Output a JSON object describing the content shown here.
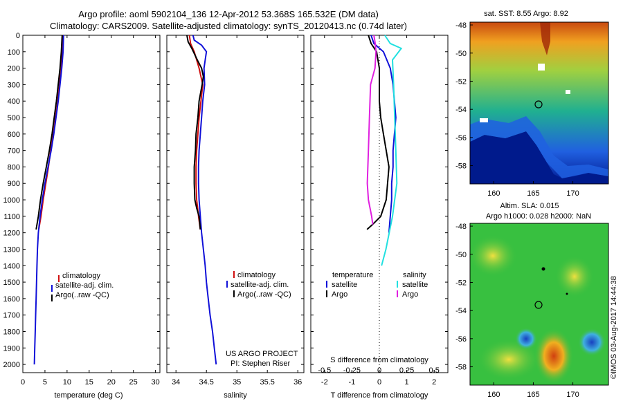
{
  "header": {
    "title_line1": "Argo profile: aoml 5902104_136 12-Apr-2012 53.368S 165.532E (DM data)",
    "title_line2": "Climatology: CARS2009. Satellite-adjusted climatology: synTS_20120413.nc (0.74d later)"
  },
  "colors": {
    "climatology": "#d01010",
    "satellite": "#1010d8",
    "argo": "#000000",
    "sat_salinity": "#22e0e0",
    "argo_salinity": "#e020e0"
  },
  "chart_data": [
    {
      "id": "temperature",
      "type": "line",
      "xlabel": "temperature (deg C)",
      "ylabel": "",
      "xlim": [
        0,
        31
      ],
      "ylim": [
        2050,
        0
      ],
      "x_ticks": [
        0,
        5,
        10,
        15,
        20,
        25,
        30
      ],
      "y_ticks": [
        0,
        100,
        200,
        300,
        400,
        500,
        600,
        700,
        800,
        900,
        1000,
        1100,
        1200,
        1300,
        1400,
        1500,
        1600,
        1700,
        1800,
        1900,
        2000
      ],
      "legend": [
        "climatology",
        "satellite-adj. clim.",
        "Argo(..raw -QC)"
      ],
      "series": [
        {
          "name": "climatology",
          "color": "#d01010",
          "depth": [
            0,
            100,
            200,
            300,
            400,
            500,
            600,
            700,
            800,
            900,
            1000,
            1100,
            1180
          ],
          "values": [
            9.0,
            8.9,
            8.7,
            8.3,
            7.9,
            7.4,
            6.9,
            6.3,
            5.8,
            5.2,
            4.6,
            4.1,
            3.6
          ]
        },
        {
          "name": "satellite-adj. clim.",
          "color": "#1010d8",
          "depth": [
            0,
            100,
            200,
            300,
            400,
            500,
            600,
            700,
            800,
            900,
            1000,
            1100,
            1200,
            1300,
            1400,
            1500,
            1600,
            1700,
            1800,
            1900,
            2000
          ],
          "values": [
            9.2,
            9.1,
            8.8,
            8.4,
            8.0,
            7.5,
            7.0,
            6.4,
            5.7,
            5.0,
            4.4,
            3.9,
            3.5,
            3.3,
            3.2,
            3.1,
            3.0,
            2.9,
            2.8,
            2.7,
            2.6
          ]
        },
        {
          "name": "Argo(..raw -QC)",
          "color": "#000000",
          "depth": [
            0,
            100,
            200,
            300,
            400,
            500,
            600,
            700,
            800,
            900,
            1000,
            1100,
            1180
          ],
          "values": [
            8.9,
            8.7,
            8.4,
            8.0,
            7.6,
            7.1,
            6.6,
            6.0,
            5.3,
            4.6,
            4.0,
            3.5,
            3.0
          ]
        }
      ]
    },
    {
      "id": "salinity",
      "type": "line",
      "xlabel": "salinity",
      "ylabel": "",
      "xlim": [
        33.85,
        36.1
      ],
      "ylim": [
        2050,
        0
      ],
      "x_ticks": [
        34,
        34.5,
        35,
        35.5,
        36
      ],
      "legend": [
        "climatology",
        "satellite-adj. clim.",
        "Argo(..raw -QC)"
      ],
      "series": [
        {
          "name": "climatology",
          "color": "#d01010",
          "depth": [
            0,
            50,
            100,
            200,
            300,
            400,
            500,
            600,
            700,
            800,
            900,
            1000,
            1100,
            1180
          ],
          "values": [
            34.22,
            34.24,
            34.3,
            34.38,
            34.44,
            34.41,
            34.38,
            34.36,
            34.34,
            34.33,
            34.33,
            34.34,
            34.37,
            34.4
          ]
        },
        {
          "name": "satellite-adj. clim.",
          "color": "#1010d8",
          "depth": [
            0,
            30,
            60,
            100,
            200,
            300,
            400,
            500,
            600,
            700,
            800,
            900,
            1000,
            1100,
            1200,
            1300,
            1400,
            1500,
            1600,
            1700,
            1800,
            1900,
            2000
          ],
          "values": [
            34.28,
            34.3,
            34.42,
            34.5,
            34.46,
            34.47,
            34.44,
            34.42,
            34.4,
            34.38,
            34.37,
            34.37,
            34.38,
            34.4,
            34.42,
            34.45,
            34.48,
            34.5,
            34.53,
            34.56,
            34.6,
            34.63,
            34.66
          ]
        },
        {
          "name": "Argo(..raw -QC)",
          "color": "#000000",
          "depth": [
            0,
            40,
            80,
            150,
            200,
            250,
            300,
            400,
            500,
            600,
            700,
            800,
            900,
            1000,
            1050,
            1100,
            1180
          ],
          "values": [
            34.18,
            34.2,
            34.26,
            34.35,
            34.42,
            34.45,
            34.43,
            34.38,
            34.36,
            34.33,
            34.32,
            34.3,
            34.3,
            34.31,
            34.34,
            34.38,
            34.4
          ]
        }
      ],
      "annotation": {
        "line1": "US ARGO PROJECT",
        "line2": "PI: Stephen Riser"
      }
    },
    {
      "id": "differences",
      "type": "line",
      "xlabel": "T difference from climatology",
      "xlabel_top": "S difference from climatology",
      "xlim": [
        -2.5,
        2.5
      ],
      "ylim": [
        2050,
        0
      ],
      "x_ticks_T": [
        -2,
        -1,
        0,
        1,
        2
      ],
      "x_tick_labels_S": [
        "-0.5",
        "-0.25",
        "0",
        "0.25",
        "0.5"
      ],
      "legend": {
        "left_header": "temperature",
        "right_header": "salinity",
        "items": [
          "satellite",
          "Argo",
          "satellite",
          "Argo"
        ]
      },
      "series": [
        {
          "name": "satellite",
          "group": "temperature",
          "color": "#1010d8",
          "depth": [
            0,
            50,
            100,
            200,
            300,
            400,
            500,
            600,
            700,
            800,
            900,
            1000,
            1100,
            1200
          ],
          "values": [
            -0.3,
            -0.2,
            0.15,
            0.4,
            0.5,
            0.55,
            0.6,
            0.55,
            0.5,
            0.5,
            0.45,
            0.45,
            0.4,
            0.35
          ]
        },
        {
          "name": "Argo",
          "group": "temperature",
          "color": "#000000",
          "depth": [
            0,
            50,
            100,
            200,
            300,
            400,
            500,
            600,
            700,
            800,
            900,
            1000,
            1100,
            1150,
            1180
          ],
          "values": [
            -0.4,
            -0.3,
            -0.1,
            0.0,
            0.0,
            0.0,
            0.05,
            0.15,
            0.25,
            0.35,
            0.3,
            0.25,
            0.05,
            -0.25,
            -0.45
          ]
        },
        {
          "name": "satellite",
          "group": "salinity",
          "color": "#22e0e0",
          "depth": [
            0,
            50,
            80,
            150,
            300,
            500,
            700,
            900,
            1100,
            1300,
            1400
          ],
          "values": [
            0.05,
            0.1,
            0.2,
            0.12,
            0.13,
            0.14,
            0.15,
            0.16,
            0.12,
            0.06,
            0.02
          ]
        },
        {
          "name": "Argo",
          "group": "salinity",
          "color": "#e020e0",
          "depth": [
            0,
            40,
            100,
            200,
            300,
            500,
            700,
            900,
            1000,
            1100,
            1150
          ],
          "values": [
            -0.05,
            -0.04,
            -0.03,
            -0.04,
            -0.08,
            -0.09,
            -0.1,
            -0.11,
            -0.1,
            -0.07,
            -0.06
          ]
        }
      ]
    },
    {
      "id": "sst-map",
      "type": "heatmap",
      "title": "sat. SST: 8.55 Argo: 8.92",
      "x_ticks": [
        160,
        165,
        170
      ],
      "y_ticks": [
        -48,
        -50,
        -52,
        -54,
        -56,
        -58
      ]
    },
    {
      "id": "sla-map",
      "type": "heatmap",
      "title_line1": "Altim. SLA: 0.015",
      "title_line2": "Argo h1000: 0.028 h2000: NaN",
      "x_ticks": [
        160,
        165,
        170
      ],
      "y_ticks": [
        -48,
        -50,
        -52,
        -54,
        -56,
        -58
      ],
      "credit": "©IMOS 03-Aug-2017 14:44:38"
    }
  ]
}
